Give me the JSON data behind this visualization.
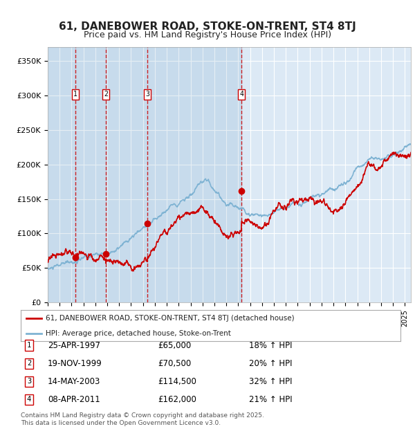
{
  "title": "61, DANEBOWER ROAD, STOKE-ON-TRENT, ST4 8TJ",
  "subtitle": "Price paid vs. HM Land Registry's House Price Index (HPI)",
  "legend_label_red": "61, DANEBOWER ROAD, STOKE-ON-TRENT, ST4 8TJ (detached house)",
  "legend_label_blue": "HPI: Average price, detached house, Stoke-on-Trent",
  "transactions": [
    {
      "num": 1,
      "date": "25-APR-1997",
      "year": 1997.32,
      "price": 65000,
      "pct": "18%",
      "dir": "↑"
    },
    {
      "num": 2,
      "date": "19-NOV-1999",
      "year": 1999.88,
      "price": 70500,
      "pct": "20%",
      "dir": "↑"
    },
    {
      "num": 3,
      "date": "14-MAY-2003",
      "year": 2003.37,
      "price": 114500,
      "pct": "32%",
      "dir": "↑"
    },
    {
      "num": 4,
      "date": "08-APR-2011",
      "year": 2011.27,
      "price": 162000,
      "pct": "21%",
      "dir": "↑"
    }
  ],
  "footer": "Contains HM Land Registry data © Crown copyright and database right 2025.\nThis data is licensed under the Open Government Licence v3.0.",
  "ylim": [
    0,
    370000
  ],
  "xlim_start": 1995.0,
  "xlim_end": 2025.5,
  "background_color": "#ffffff",
  "plot_bg_color": "#dce9f5",
  "grid_color": "#ffffff",
  "red_color": "#cc0000",
  "blue_color": "#7fb3d3",
  "dashed_color": "#cc0000",
  "title_fontsize": 11,
  "subtitle_fontsize": 9,
  "ytick_labels": [
    "£0",
    "£50K",
    "£100K",
    "£150K",
    "£200K",
    "£250K",
    "£300K",
    "£350K"
  ],
  "ytick_values": [
    0,
    50000,
    100000,
    150000,
    200000,
    250000,
    300000,
    350000
  ]
}
